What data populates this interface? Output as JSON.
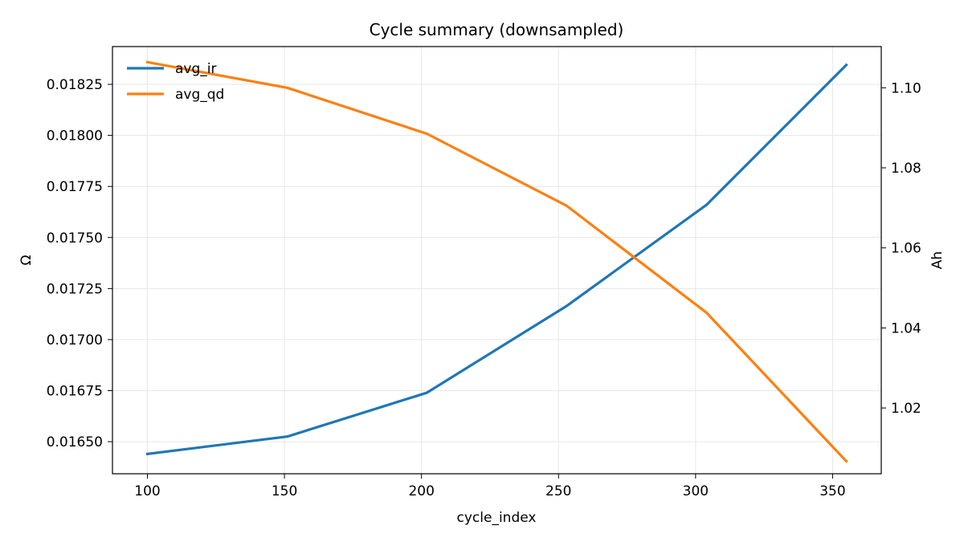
{
  "chart_data": {
    "type": "line",
    "title": "Cycle summary (downsampled)",
    "xlabel": "cycle_index",
    "ylabel_left": "Ω",
    "ylabel_right": "Ah",
    "x": [
      100,
      151,
      202,
      253,
      304,
      355
    ],
    "xlim": [
      87.25,
      367.75
    ],
    "xticks": [
      100,
      150,
      200,
      250,
      300,
      350
    ],
    "ylim_left": [
      0.016343,
      0.018435
    ],
    "yticks_left": [
      "0.01650",
      "0.01675",
      "0.01700",
      "0.01725",
      "0.01750",
      "0.01775",
      "0.01800",
      "0.01825"
    ],
    "ylim_right": [
      1.00357,
      1.11029
    ],
    "yticks_right": [
      "1.02",
      "1.04",
      "1.06",
      "1.08",
      "1.10"
    ],
    "grid": true,
    "legend": "top-left",
    "series": [
      {
        "name": "avg_ir",
        "axis": "left",
        "color": "#1f77b4",
        "values": [
          0.01644,
          0.016525,
          0.01674,
          0.017165,
          0.01766,
          0.018345
        ]
      },
      {
        "name": "avg_qd",
        "axis": "right",
        "color": "#ff7f0e",
        "values": [
          1.1064,
          1.1,
          1.0885,
          1.0705,
          1.0438,
          1.0067
        ]
      }
    ]
  }
}
